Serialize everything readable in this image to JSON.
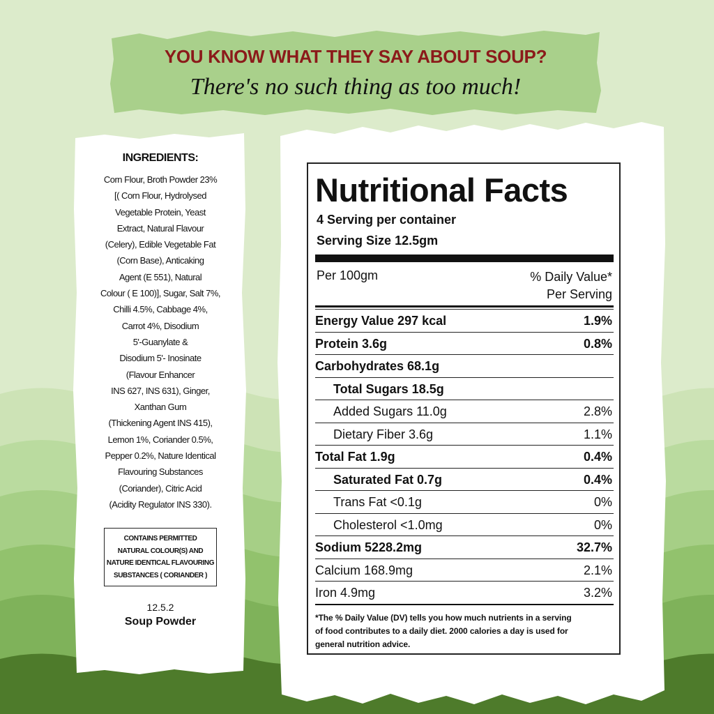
{
  "banner": {
    "headline": "YOU KNOW WHAT THEY SAY ABOUT SOUP?",
    "tagline": "There's no such thing as too much!"
  },
  "ingredients": {
    "title": "INGREDIENTS:",
    "lines": [
      "Corn Flour, Broth Powder 23%",
      "[( Corn Flour, Hydrolysed",
      "Vegetable Protein, Yeast",
      "Extract, Natural Flavour",
      "(Celery), Edible Vegetable Fat",
      "(Corn Base), Anticaking",
      "Agent (E 551), Natural",
      "Colour ( E 100)], Sugar, Salt 7%,",
      "Chilli 4.5%, Cabbage 4%,",
      "Carrot 4%, Disodium",
      "5'-Guanylate &",
      "Disodium 5'- Inosinate",
      "(Flavour Enhancer",
      "INS 627, INS 631), Ginger,",
      "Xanthan Gum",
      "(Thickening Agent INS 415),",
      "Lemon 1%, Coriander 0.5%,",
      "Pepper 0.2%, Nature Identical",
      "Flavouring Substances",
      "(Coriander), Citric Acid",
      "(Acidity Regulator INS 330)."
    ],
    "notice": [
      "CONTAINS PERMITTED",
      "NATURAL COLOUR(S) AND",
      "NATURE IDENTICAL FLAVOURING",
      "SUBSTANCES ( CORIANDER )"
    ],
    "code": "12.5.2",
    "product": "Soup Powder"
  },
  "nutrition": {
    "title": "Nutritional Facts",
    "servings": "4 Serving per container",
    "serving_size_label": "Serving Size",
    "serving_size": "12.5gm",
    "per": "Per 100gm",
    "dv_header": [
      "% Daily Value*",
      "Per Serving"
    ],
    "rows": [
      {
        "nutrient": "Energy Value 297 kcal",
        "dv": "1.9%",
        "bold": true,
        "indent": false
      },
      {
        "nutrient": "Protein 3.6g",
        "dv": "0.8%",
        "bold": true,
        "indent": false
      },
      {
        "nutrient": "Carbohydrates 68.1g",
        "bold": true,
        "indent": false
      },
      {
        "nutrient": "Total Sugars 18.5g",
        "bold": true,
        "indent": true
      },
      {
        "nutrient": "Added Sugars 11.0g",
        "dv": "2.8%",
        "bold": false,
        "indent": true
      },
      {
        "nutrient": "Dietary Fiber 3.6g",
        "dv": "1.1%",
        "bold": false,
        "indent": true
      },
      {
        "nutrient": "Total Fat 1.9g",
        "dv": "0.4%",
        "bold": true,
        "indent": false
      },
      {
        "nutrient": "Saturated Fat 0.7g",
        "dv": "0.4%",
        "bold": true,
        "indent": true
      },
      {
        "nutrient": "Trans Fat <0.1g",
        "dv": "0%",
        "bold": false,
        "indent": true
      },
      {
        "nutrient": "Cholesterol <1.0mg",
        "dv": "0%",
        "bold": false,
        "indent": true
      },
      {
        "nutrient": "Sodium 5228.2mg",
        "dv": "32.7%",
        "bold": true,
        "indent": false
      },
      {
        "nutrient": "Calcium 168.9mg",
        "dv": "2.1%",
        "bold": false,
        "indent": false
      },
      {
        "nutrient": "Iron 4.9mg",
        "dv": "3.2%",
        "bold": false,
        "indent": false
      }
    ],
    "footnote": [
      "*The % Daily Value (DV) tells you how much nutrients in a serving",
      "of food contributes to a daily diet. 2000 calories a day is used for",
      "general nutrition advice."
    ]
  }
}
